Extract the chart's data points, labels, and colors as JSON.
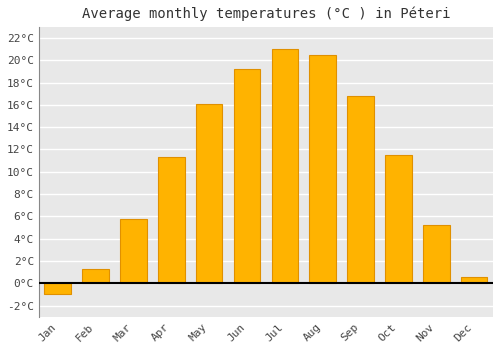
{
  "title": "Average monthly temperatures (°C ) in Péteri",
  "months": [
    "Jan",
    "Feb",
    "Mar",
    "Apr",
    "May",
    "Jun",
    "Jul",
    "Aug",
    "Sep",
    "Oct",
    "Nov",
    "Dec"
  ],
  "values": [
    -1.0,
    1.3,
    5.8,
    11.3,
    16.1,
    19.2,
    21.0,
    20.5,
    16.8,
    11.5,
    5.2,
    0.6
  ],
  "bar_color": "#FFB300",
  "bar_edge_color": "#E09000",
  "ylim": [
    -3,
    23
  ],
  "yticks": [
    -2,
    0,
    2,
    4,
    6,
    8,
    10,
    12,
    14,
    16,
    18,
    20,
    22
  ],
  "background_color": "#ffffff",
  "plot_bg_color": "#e8e8e8",
  "grid_color": "#ffffff",
  "title_fontsize": 10,
  "tick_fontsize": 8,
  "font_family": "monospace"
}
